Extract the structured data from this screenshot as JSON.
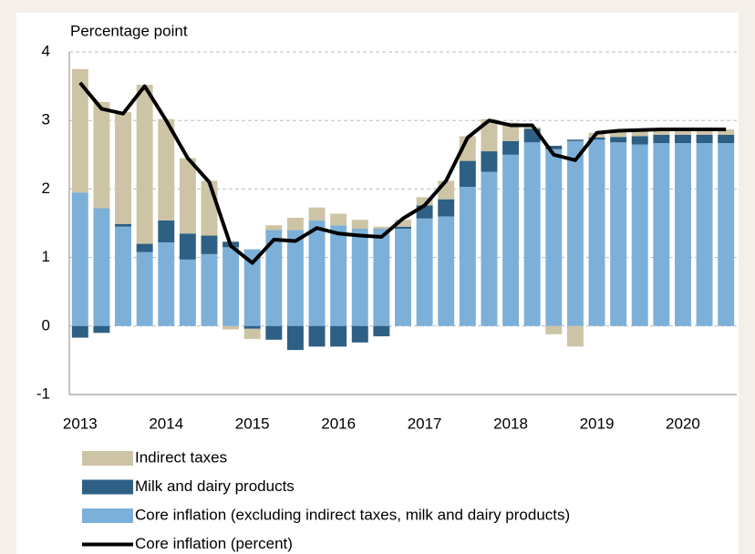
{
  "chart_data": {
    "type": "stacked_bar_line",
    "y_label": "Percentage point",
    "categories": [
      "2013",
      null,
      null,
      null,
      "2014",
      null,
      null,
      null,
      "2015",
      null,
      null,
      null,
      "2016",
      null,
      null,
      null,
      "2017",
      null,
      null,
      null,
      "2018",
      null,
      null,
      null,
      "2019",
      null,
      null,
      null,
      "2020",
      null,
      null
    ],
    "series": [
      {
        "name": "Indirect taxes",
        "color": "#cdc4a6",
        "values": [
          1.8,
          1.55,
          1.63,
          2.32,
          1.48,
          1.1,
          0.8,
          -0.05,
          -0.15,
          0.07,
          0.18,
          0.19,
          0.17,
          0.13,
          0.03,
          0.1,
          0.12,
          0.27,
          0.36,
          0.47,
          0.27,
          0.02,
          -0.12,
          -0.3,
          0.07,
          0.08,
          0.08,
          0.08,
          0.08,
          0.08,
          0.08
        ]
      },
      {
        "name": "Milk and dairy products",
        "color": "#2e5f85",
        "values": [
          -0.17,
          -0.1,
          0.04,
          0.12,
          0.32,
          0.38,
          0.27,
          0.08,
          -0.04,
          -0.2,
          -0.35,
          -0.3,
          -0.3,
          -0.24,
          -0.15,
          0.03,
          0.19,
          0.25,
          0.38,
          0.3,
          0.2,
          0.2,
          0.05,
          0.02,
          0.03,
          0.08,
          0.12,
          0.12,
          0.12,
          0.12,
          0.12
        ]
      },
      {
        "name": "Core inflation (excluding indirect taxes, milk and dairy products)",
        "color": "#7db0d9",
        "values": [
          1.95,
          1.72,
          1.45,
          1.08,
          1.22,
          0.97,
          1.05,
          1.15,
          1.12,
          1.4,
          1.4,
          1.54,
          1.47,
          1.42,
          1.42,
          1.42,
          1.57,
          1.6,
          2.03,
          2.25,
          2.5,
          2.68,
          2.58,
          2.7,
          2.72,
          2.68,
          2.65,
          2.67,
          2.67,
          2.67,
          2.67
        ]
      },
      {
        "name": "Core inflation (percent)",
        "color": "#000000",
        "type": "line",
        "values": [
          3.55,
          3.17,
          3.1,
          3.5,
          3.0,
          2.45,
          2.1,
          1.17,
          0.92,
          1.26,
          1.24,
          1.43,
          1.35,
          1.32,
          1.3,
          1.57,
          1.76,
          2.12,
          2.75,
          3.0,
          2.93,
          2.93,
          2.5,
          2.42,
          2.82,
          2.85,
          2.86,
          2.87,
          2.87,
          2.87,
          2.87
        ]
      }
    ],
    "ylim": [
      -1,
      4
    ],
    "yticks": [
      -1,
      0,
      1,
      2,
      3,
      4
    ],
    "grid": true
  }
}
